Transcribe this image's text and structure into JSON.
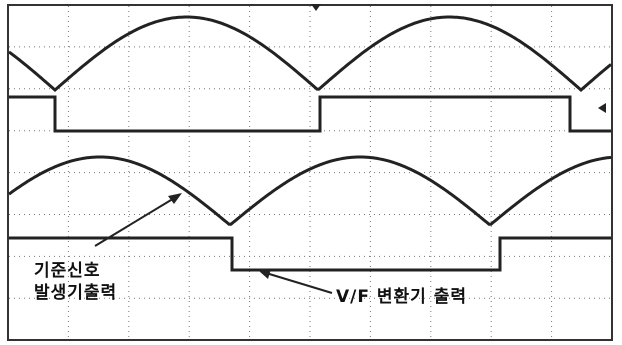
{
  "annotations": {
    "reference": {
      "lines": [
        "기준신호",
        "발생기출력"
      ]
    },
    "vf": {
      "text": "V/F 변환기 출력"
    }
  }
}
